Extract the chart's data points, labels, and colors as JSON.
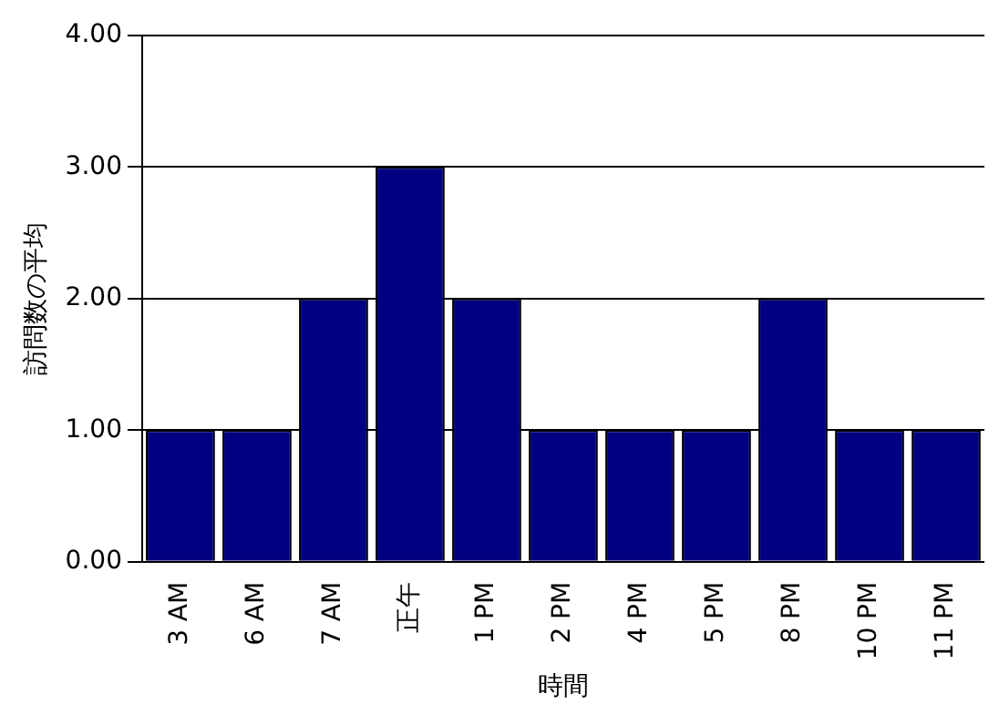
{
  "chart_data": {
    "type": "bar",
    "xlabel": "時間",
    "ylabel": "訪問数の平均",
    "categories": [
      "3 AM",
      "6 AM",
      "7 AM",
      "正午",
      "1 PM",
      "2 PM",
      "4 PM",
      "5 PM",
      "8 PM",
      "10 PM",
      "11 PM"
    ],
    "values": [
      1,
      1,
      2,
      3,
      2,
      1,
      1,
      1,
      2,
      1,
      1
    ],
    "color": "#000080",
    "ylim": [
      0,
      4
    ],
    "yticks": [
      {
        "value": 0,
        "label": "0.00"
      },
      {
        "value": 1,
        "label": "1.00"
      },
      {
        "value": 2,
        "label": "2.00"
      },
      {
        "value": 3,
        "label": "3.00"
      },
      {
        "value": 4,
        "label": "4.00"
      }
    ],
    "grid": "y",
    "legend": false
  }
}
